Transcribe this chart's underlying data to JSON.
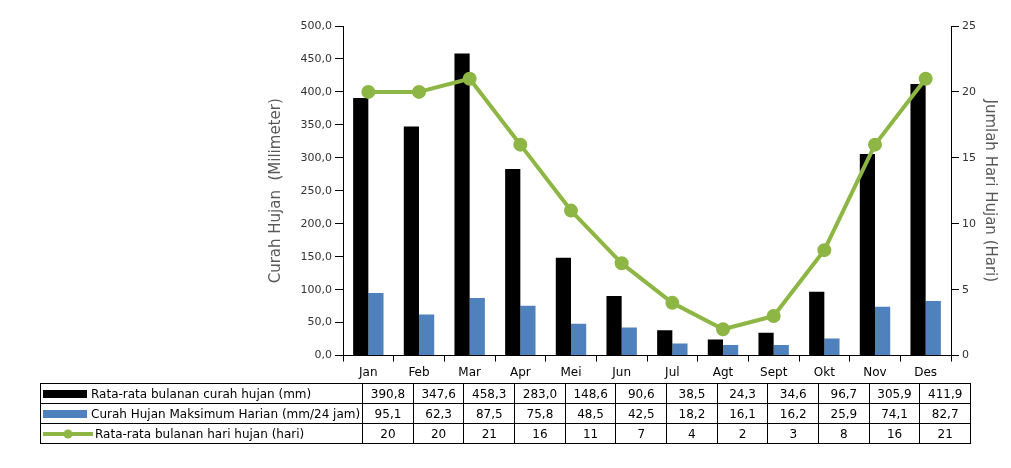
{
  "chart_data": {
    "type": "bar",
    "categories": [
      "Jan",
      "Feb",
      "Mar",
      "Apr",
      "Mei",
      "Jun",
      "Jul",
      "Agt",
      "Sept",
      "Okt",
      "Nov",
      "Des"
    ],
    "series": [
      {
        "name": "Rata-rata bulanan curah hujan  (mm)",
        "color": "#000000",
        "values": [
          390.8,
          347.6,
          458.3,
          283.0,
          148.6,
          90.6,
          38.5,
          24.3,
          34.6,
          96.7,
          305.9,
          411.9
        ],
        "value_labels": [
          "390,8",
          "347,6",
          "458,3",
          "283,0",
          "148,6",
          "90,6",
          "38,5",
          "24,3",
          "34,6",
          "96,7",
          "305,9",
          "411,9"
        ]
      },
      {
        "name": "Curah Hujan Maksimum Harian (mm/24 jam)",
        "color": "#4f81bd",
        "values": [
          95.1,
          62.3,
          87.5,
          75.8,
          48.5,
          42.5,
          18.2,
          16.1,
          16.2,
          25.9,
          74.1,
          82.7
        ],
        "value_labels": [
          "95,1",
          "62,3",
          "87,5",
          "75,8",
          "48,5",
          "42,5",
          "18,2",
          "16,1",
          "16,2",
          "25,9",
          "74,1",
          "82,7"
        ]
      },
      {
        "name": "Rata-rata bulanan hari hujan (hari)",
        "type": "line",
        "axis": "y2",
        "color": "#8db645",
        "values": [
          20,
          20,
          21,
          16,
          11,
          7,
          4,
          2,
          3,
          8,
          16,
          21
        ]
      }
    ],
    "ylabel": "Curah Hujan  (Milimeter)",
    "y2label": "Jumlah Hari Hujan (Hari)",
    "ylim": [
      0,
      500
    ],
    "yticks": [
      {
        "value": 0,
        "label": "0,0"
      },
      {
        "value": 50,
        "label": "50,0"
      },
      {
        "value": 100,
        "label": "100,0"
      },
      {
        "value": 150,
        "label": "150,0"
      },
      {
        "value": 200,
        "label": "200,0"
      },
      {
        "value": 250,
        "label": "250,0"
      },
      {
        "value": 300,
        "label": "300,0"
      },
      {
        "value": 350,
        "label": "350,0"
      },
      {
        "value": 400,
        "label": "400,0"
      },
      {
        "value": 450,
        "label": "450,0"
      },
      {
        "value": 500,
        "label": "500,0"
      }
    ],
    "y2lim": [
      0,
      25
    ],
    "y2ticks": [
      0,
      5,
      10,
      15,
      20,
      25
    ],
    "data_labels": true,
    "legend": "bottom",
    "grid": false,
    "marker": "circle",
    "line_style": "solid"
  }
}
